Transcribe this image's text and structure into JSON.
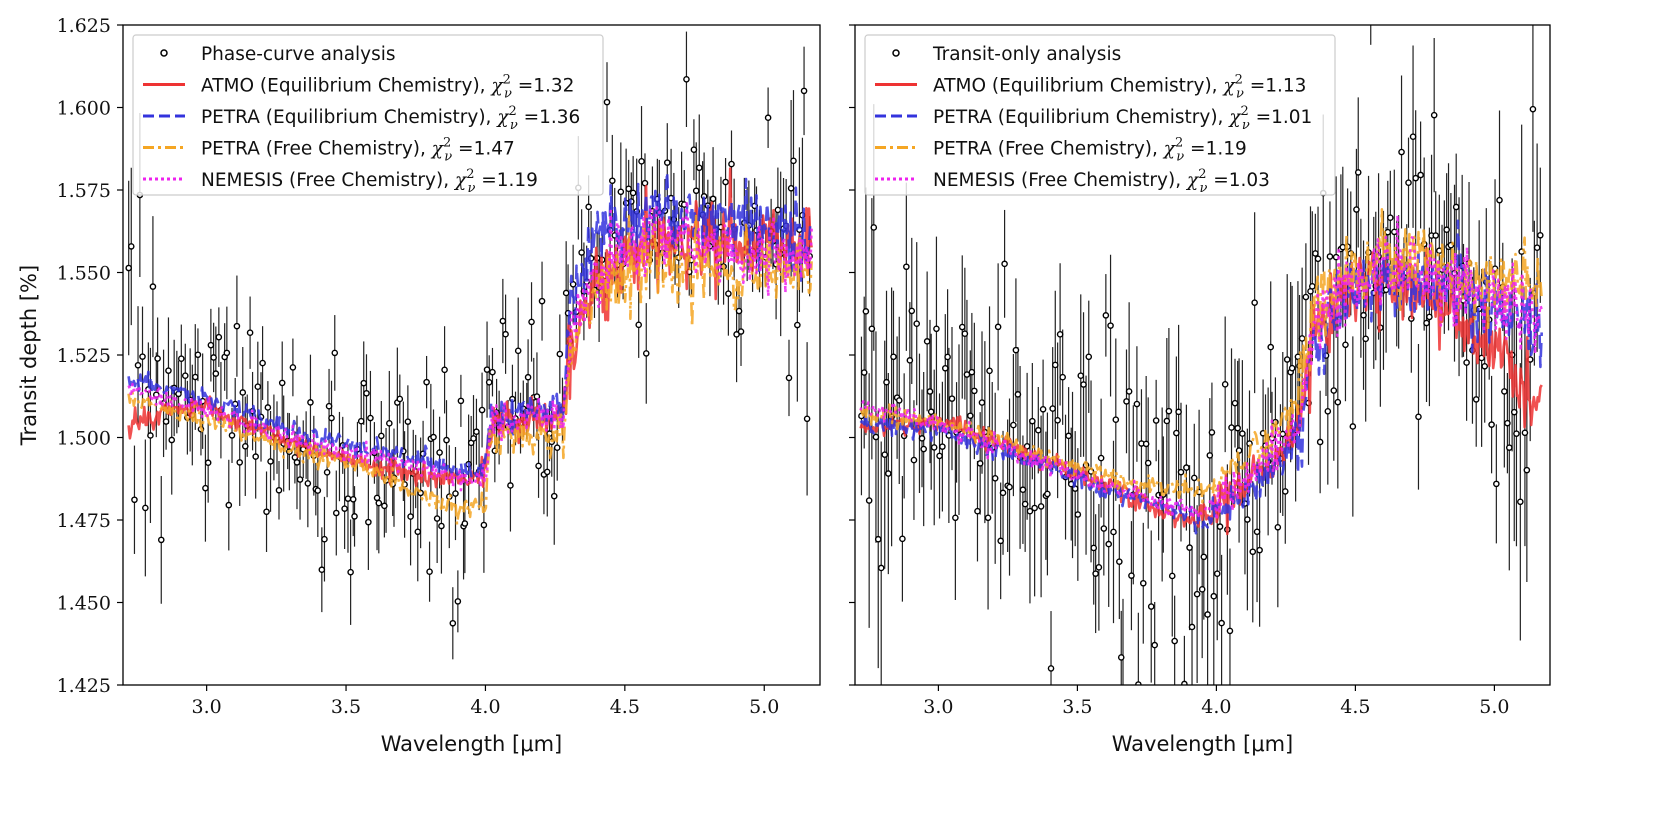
{
  "chart_data": [
    {
      "type": "scatter",
      "panel": "left",
      "title": "",
      "xlabel": "Wavelength [μm]",
      "ylabel": "Transit depth [%]",
      "xlim": [
        2.7,
        5.2
      ],
      "ylim": [
        1.425,
        1.625
      ],
      "xticks": [
        "3.0",
        "3.5",
        "4.0",
        "4.5",
        "5.0"
      ],
      "yticks": [
        "1.425",
        "1.450",
        "1.475",
        "1.500",
        "1.525",
        "1.550",
        "1.575",
        "1.600",
        "1.625"
      ],
      "legend_position": "top-left",
      "legend": [
        {
          "label": "Phase-curve analysis",
          "chi2": "",
          "color": "#000000",
          "style": "marker"
        },
        {
          "label": "ATMO (Equilibrium Chemistry), ",
          "chi2": "1.32",
          "color": "#ee3333",
          "style": "solid"
        },
        {
          "label": "PETRA (Equilibrium Chemistry), ",
          "chi2": "1.36",
          "color": "#3333dd",
          "style": "dashed"
        },
        {
          "label": "PETRA (Free Chemistry), ",
          "chi2": "1.47",
          "color": "#f5a623",
          "style": "dashdot"
        },
        {
          "label": "NEMESIS (Free Chemistry), ",
          "chi2": "1.19",
          "color": "#ee22ee",
          "style": "dotted"
        }
      ],
      "observations": {
        "x_range": [
          2.72,
          5.17
        ],
        "points": 260,
        "segments": [
          {
            "x": [
              2.72,
              2.75,
              2.8,
              3.0,
              3.5,
              3.75,
              3.85,
              4.0
            ],
            "y": [
              1.535,
              1.525,
              1.515,
              1.508,
              1.492,
              1.49,
              1.487,
              1.488
            ]
          },
          {
            "x": [
              4.0,
              4.15,
              4.28
            ],
            "y": [
              1.503,
              1.505,
              1.508
            ]
          },
          {
            "x": [
              4.28,
              4.33,
              4.45,
              4.6,
              5.0,
              5.17
            ],
            "y": [
              1.535,
              1.545,
              1.56,
              1.565,
              1.555,
              1.555
            ]
          }
        ],
        "scatter_sigma": 0.015,
        "error_sigma": 0.012
      },
      "series": [
        {
          "name": "ATMO",
          "color": "#ee3333",
          "dash": "",
          "x": [
            2.72,
            2.85,
            3.0,
            3.2,
            3.5,
            3.8,
            3.95,
            4.0,
            4.02,
            4.15,
            4.28,
            4.3,
            4.4,
            4.6,
            4.8,
            5.0,
            5.17
          ],
          "y": [
            1.504,
            1.508,
            1.509,
            1.502,
            1.493,
            1.488,
            1.487,
            1.49,
            1.505,
            1.506,
            1.508,
            1.525,
            1.548,
            1.56,
            1.56,
            1.56,
            1.558
          ]
        },
        {
          "name": "PETRA-eq",
          "color": "#3333dd",
          "dash": "14,7",
          "x": [
            2.72,
            3.0,
            3.3,
            3.6,
            3.8,
            3.95,
            4.0,
            4.02,
            4.15,
            4.28,
            4.3,
            4.4,
            4.6,
            4.8,
            5.0,
            5.17
          ],
          "y": [
            1.517,
            1.512,
            1.502,
            1.496,
            1.493,
            1.49,
            1.492,
            1.507,
            1.508,
            1.51,
            1.54,
            1.563,
            1.57,
            1.568,
            1.566,
            1.562
          ]
        },
        {
          "name": "PETRA-free",
          "color": "#f5a623",
          "dash": "14,5,3,5",
          "x": [
            2.72,
            3.0,
            3.3,
            3.6,
            3.8,
            3.9,
            4.0,
            4.02,
            4.15,
            4.28,
            4.3,
            4.4,
            4.6,
            4.8,
            5.0,
            5.17
          ],
          "y": [
            1.512,
            1.505,
            1.497,
            1.49,
            1.482,
            1.478,
            1.48,
            1.5,
            1.5,
            1.502,
            1.525,
            1.545,
            1.553,
            1.552,
            1.55,
            1.548
          ]
        },
        {
          "name": "NEMESIS",
          "color": "#ee22ee",
          "dash": "3,4",
          "x": [
            2.72,
            3.0,
            3.3,
            3.6,
            3.8,
            3.95,
            4.0,
            4.02,
            4.15,
            4.28,
            4.3,
            4.4,
            4.6,
            4.8,
            5.0,
            5.17
          ],
          "y": [
            1.515,
            1.508,
            1.5,
            1.494,
            1.49,
            1.486,
            1.488,
            1.504,
            1.506,
            1.508,
            1.532,
            1.552,
            1.56,
            1.558,
            1.556,
            1.555
          ]
        }
      ]
    },
    {
      "type": "scatter",
      "panel": "right",
      "title": "",
      "xlabel": "Wavelength [μm]",
      "ylabel": "",
      "xlim": [
        2.7,
        5.2
      ],
      "ylim": [
        1.425,
        1.625
      ],
      "xticks": [
        "3.0",
        "3.5",
        "4.0",
        "4.5",
        "5.0"
      ],
      "yticks": [],
      "legend_position": "top-left",
      "legend": [
        {
          "label": "Transit-only analysis",
          "chi2": "",
          "color": "#000000",
          "style": "marker"
        },
        {
          "label": "ATMO (Equilibrium Chemistry), ",
          "chi2": "1.13",
          "color": "#ee3333",
          "style": "solid"
        },
        {
          "label": "PETRA (Equilibrium Chemistry), ",
          "chi2": "1.01",
          "color": "#3333dd",
          "style": "dashed"
        },
        {
          "label": "PETRA (Free Chemistry), ",
          "chi2": "1.19",
          "color": "#f5a623",
          "style": "dashdot"
        },
        {
          "label": "NEMESIS (Free Chemistry), ",
          "chi2": "1.03",
          "color": "#ee22ee",
          "style": "dotted"
        }
      ],
      "observations": {
        "x_range": [
          2.72,
          5.17
        ],
        "points": 270,
        "segments": [
          {
            "x": [
              2.72,
              2.8,
              3.0,
              3.3,
              3.6,
              3.8,
              3.9,
              4.0,
              4.1,
              4.2,
              4.3
            ],
            "y": [
              1.52,
              1.51,
              1.505,
              1.495,
              1.485,
              1.478,
              1.472,
              1.478,
              1.49,
              1.5,
              1.512
            ]
          },
          {
            "x": [
              4.3,
              4.35,
              4.5,
              4.6,
              4.8,
              5.0,
              5.17
            ],
            "y": [
              1.532,
              1.54,
              1.55,
              1.555,
              1.548,
              1.54,
              1.53
            ]
          }
        ],
        "scatter_sigma": 0.022,
        "error_sigma": 0.02
      },
      "series": [
        {
          "name": "ATMO",
          "color": "#ee3333",
          "dash": "",
          "x": [
            2.72,
            3.0,
            3.3,
            3.6,
            3.85,
            3.95,
            4.05,
            4.2,
            4.3,
            4.35,
            4.5,
            4.6,
            4.8,
            5.0,
            5.17
          ],
          "y": [
            1.503,
            1.505,
            1.496,
            1.486,
            1.476,
            1.475,
            1.482,
            1.492,
            1.505,
            1.535,
            1.545,
            1.55,
            1.54,
            1.528,
            1.51
          ]
        },
        {
          "name": "PETRA-eq",
          "color": "#3333dd",
          "dash": "14,7",
          "x": [
            2.72,
            3.0,
            3.3,
            3.6,
            3.85,
            3.95,
            4.05,
            4.2,
            4.3,
            4.35,
            4.5,
            4.6,
            4.8,
            5.0,
            5.17
          ],
          "y": [
            1.504,
            1.502,
            1.494,
            1.484,
            1.478,
            1.473,
            1.48,
            1.49,
            1.5,
            1.53,
            1.545,
            1.55,
            1.545,
            1.54,
            1.53
          ]
        },
        {
          "name": "PETRA-free",
          "color": "#f5a623",
          "dash": "14,5,3,5",
          "x": [
            2.72,
            3.0,
            3.3,
            3.6,
            3.85,
            3.95,
            4.05,
            4.2,
            4.3,
            4.35,
            4.5,
            4.6,
            4.8,
            5.0,
            5.17
          ],
          "y": [
            1.508,
            1.505,
            1.497,
            1.488,
            1.484,
            1.484,
            1.49,
            1.5,
            1.512,
            1.54,
            1.55,
            1.555,
            1.552,
            1.548,
            1.545
          ]
        },
        {
          "name": "NEMESIS",
          "color": "#ee22ee",
          "dash": "3,4",
          "x": [
            2.72,
            3.0,
            3.3,
            3.6,
            3.85,
            3.95,
            4.05,
            4.2,
            4.3,
            4.35,
            4.5,
            4.6,
            4.8,
            5.0,
            5.17
          ],
          "y": [
            1.51,
            1.504,
            1.495,
            1.485,
            1.479,
            1.477,
            1.484,
            1.495,
            1.507,
            1.535,
            1.546,
            1.552,
            1.548,
            1.542,
            1.538
          ]
        }
      ]
    }
  ]
}
